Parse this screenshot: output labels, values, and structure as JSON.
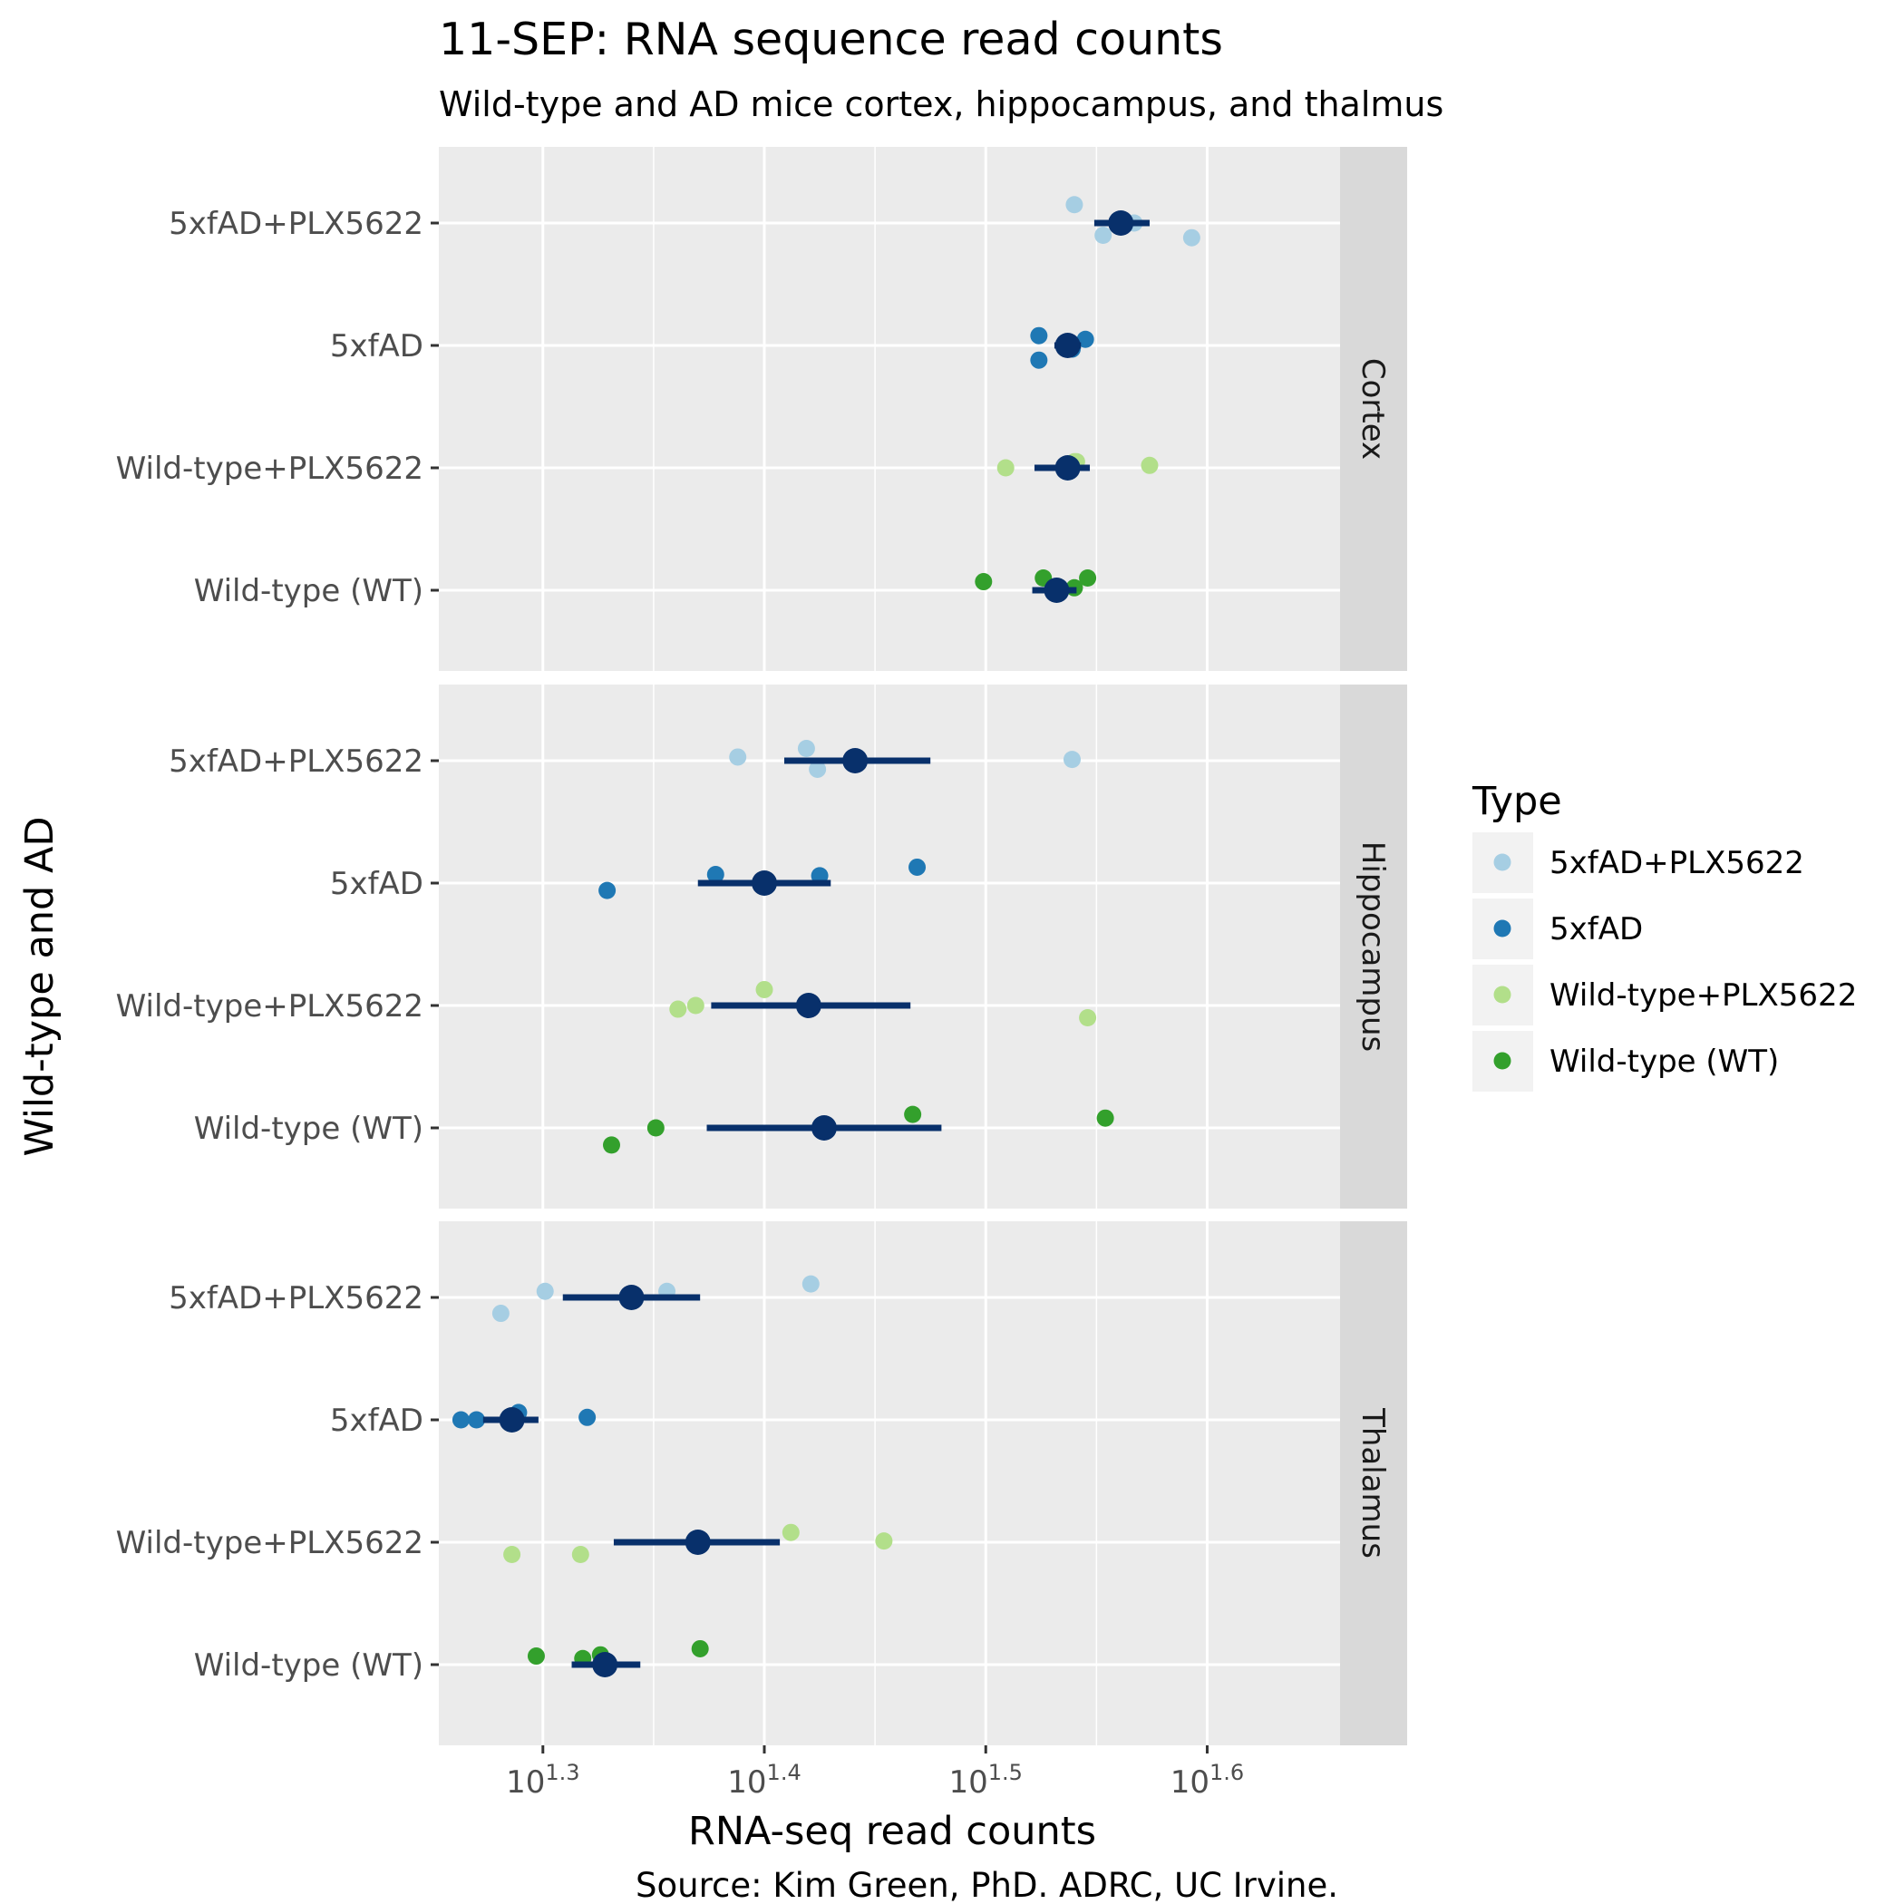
{
  "chart_data": {
    "type": "scatter",
    "title": "11-SEP: RNA sequence read counts",
    "subtitle": "Wild-type and AD mice cortex, hippocampus, and thalmus",
    "xlabel": "RNA-seq read counts",
    "ylabel": "Wild-type and AD",
    "caption": "Source: Kim Green, PhD. ADRC, UC Irvine.",
    "x_scale": "log10",
    "xlim_log10": [
      1.253,
      1.66
    ],
    "x_ticks": [
      {
        "base": "10",
        "exp": "1.3",
        "log10": 1.3
      },
      {
        "base": "10",
        "exp": "1.4",
        "log10": 1.4
      },
      {
        "base": "10",
        "exp": "1.5",
        "log10": 1.5
      },
      {
        "base": "10",
        "exp": "1.6",
        "log10": 1.6
      }
    ],
    "categories": [
      "5xfAD+PLX5622",
      "5xfAD",
      "Wild-type+PLX5622",
      "Wild-type (WT)"
    ],
    "legend": {
      "title": "Type",
      "position": "right",
      "items": [
        {
          "label": "5xfAD+PLX5622",
          "color": "#a6cee3"
        },
        {
          "label": "5xfAD",
          "color": "#1f78b4"
        },
        {
          "label": "Wild-type+PLX5622",
          "color": "#b2df8a"
        },
        {
          "label": "Wild-type (WT)",
          "color": "#33a02c"
        }
      ]
    },
    "summary_color": "#08306b",
    "grid": true,
    "panels": [
      {
        "name": "Cortex",
        "groups": [
          {
            "category": "5xfAD+PLX5622",
            "mean": 1.561,
            "lower": 1.549,
            "upper": 1.574,
            "points": [
              {
                "x": 1.54,
                "j": 0.15
              },
              {
                "x": 1.553,
                "j": -0.1
              },
              {
                "x": 1.567,
                "j": 0.0
              },
              {
                "x": 1.593,
                "j": -0.12
              }
            ]
          },
          {
            "category": "5xfAD",
            "mean": 1.537,
            "lower": 1.531,
            "upper": 1.543,
            "points": [
              {
                "x": 1.524,
                "j": 0.08
              },
              {
                "x": 1.524,
                "j": -0.12
              },
              {
                "x": 1.539,
                "j": -0.03
              },
              {
                "x": 1.545,
                "j": 0.05
              }
            ]
          },
          {
            "category": "Wild-type+PLX5622",
            "mean": 1.537,
            "lower": 1.522,
            "upper": 1.547,
            "points": [
              {
                "x": 1.509,
                "j": 0.0
              },
              {
                "x": 1.54,
                "j": 0.05
              },
              {
                "x": 1.541,
                "j": 0.05
              },
              {
                "x": 1.574,
                "j": 0.02
              }
            ]
          },
          {
            "category": "Wild-type (WT)",
            "mean": 1.532,
            "lower": 1.521,
            "upper": 1.541,
            "points": [
              {
                "x": 1.499,
                "j": 0.07
              },
              {
                "x": 1.526,
                "j": 0.1
              },
              {
                "x": 1.54,
                "j": 0.02
              },
              {
                "x": 1.546,
                "j": 0.1
              }
            ]
          }
        ]
      },
      {
        "name": "Hippocampus",
        "groups": [
          {
            "category": "5xfAD+PLX5622",
            "mean": 1.441,
            "lower": 1.409,
            "upper": 1.475,
            "points": [
              {
                "x": 1.388,
                "j": 0.03
              },
              {
                "x": 1.419,
                "j": 0.1
              },
              {
                "x": 1.424,
                "j": -0.07
              },
              {
                "x": 1.539,
                "j": 0.01
              }
            ]
          },
          {
            "category": "5xfAD",
            "mean": 1.4,
            "lower": 1.37,
            "upper": 1.43,
            "points": [
              {
                "x": 1.329,
                "j": -0.06
              },
              {
                "x": 1.378,
                "j": 0.07
              },
              {
                "x": 1.425,
                "j": 0.06
              },
              {
                "x": 1.469,
                "j": 0.13
              }
            ]
          },
          {
            "category": "Wild-type+PLX5622",
            "mean": 1.42,
            "lower": 1.376,
            "upper": 1.466,
            "points": [
              {
                "x": 1.361,
                "j": -0.03
              },
              {
                "x": 1.369,
                "j": 0.0
              },
              {
                "x": 1.4,
                "j": 0.13
              },
              {
                "x": 1.546,
                "j": -0.1
              }
            ]
          },
          {
            "category": "Wild-type (WT)",
            "mean": 1.427,
            "lower": 1.374,
            "upper": 1.48,
            "points": [
              {
                "x": 1.331,
                "j": -0.14
              },
              {
                "x": 1.351,
                "j": 0.0
              },
              {
                "x": 1.467,
                "j": 0.11
              },
              {
                "x": 1.554,
                "j": 0.08
              }
            ]
          }
        ]
      },
      {
        "name": "Thalamus",
        "groups": [
          {
            "category": "5xfAD+PLX5622",
            "mean": 1.34,
            "lower": 1.309,
            "upper": 1.371,
            "points": [
              {
                "x": 1.281,
                "j": -0.13
              },
              {
                "x": 1.301,
                "j": 0.05
              },
              {
                "x": 1.356,
                "j": 0.05
              },
              {
                "x": 1.421,
                "j": 0.11
              }
            ]
          },
          {
            "category": "5xfAD",
            "mean": 1.286,
            "lower": 1.273,
            "upper": 1.298,
            "points": [
              {
                "x": 1.263,
                "j": 0.0
              },
              {
                "x": 1.27,
                "j": 0.0
              },
              {
                "x": 1.289,
                "j": 0.06
              },
              {
                "x": 1.32,
                "j": 0.02
              }
            ]
          },
          {
            "category": "Wild-type+PLX5622",
            "mean": 1.37,
            "lower": 1.332,
            "upper": 1.407,
            "points": [
              {
                "x": 1.286,
                "j": -0.1
              },
              {
                "x": 1.317,
                "j": -0.1
              },
              {
                "x": 1.412,
                "j": 0.08
              },
              {
                "x": 1.454,
                "j": 0.01
              }
            ]
          },
          {
            "category": "Wild-type (WT)",
            "mean": 1.328,
            "lower": 1.313,
            "upper": 1.344,
            "points": [
              {
                "x": 1.297,
                "j": 0.07
              },
              {
                "x": 1.318,
                "j": 0.05
              },
              {
                "x": 1.326,
                "j": 0.08
              },
              {
                "x": 1.371,
                "j": 0.13
              }
            ]
          }
        ]
      }
    ]
  }
}
